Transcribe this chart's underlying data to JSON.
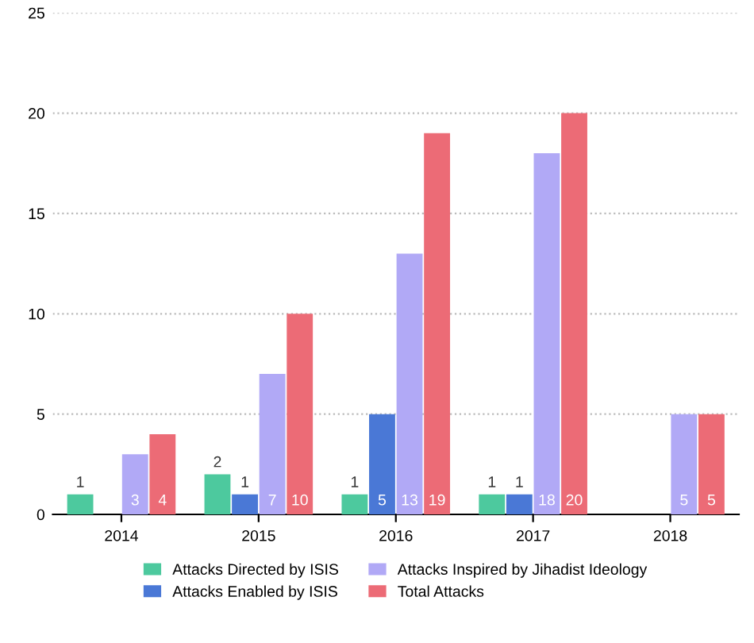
{
  "chart_data": {
    "type": "bar",
    "categories": [
      "2014",
      "2015",
      "2016",
      "2017",
      "2018"
    ],
    "series": [
      {
        "name": "Attacks Directed by ISIS",
        "color": "#4dc99e",
        "values": [
          1,
          2,
          1,
          1,
          null
        ]
      },
      {
        "name": "Attacks Enabled by ISIS",
        "color": "#4a78d6",
        "values": [
          null,
          1,
          5,
          1,
          null
        ]
      },
      {
        "name": "Attacks Inspired by Jihadist Ideology",
        "color": "#b1a9f6",
        "values": [
          3,
          7,
          13,
          18,
          5
        ]
      },
      {
        "name": "Total Attacks",
        "color": "#ec6b76",
        "values": [
          4,
          10,
          19,
          20,
          5
        ]
      }
    ],
    "ylim": [
      0,
      25
    ],
    "yticks": [
      0,
      5,
      10,
      15,
      20,
      25
    ],
    "grid": "y",
    "legend": "bottom",
    "data_labels": true
  }
}
